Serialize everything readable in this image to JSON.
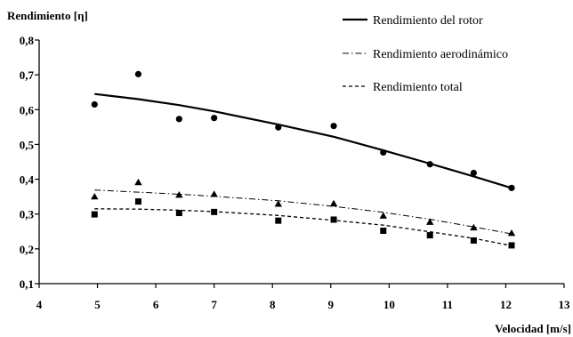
{
  "chart_data": {
    "type": "scatter",
    "ylabel": "Rendimiento [η]",
    "xlabel": "Velocidad  [m/s]",
    "xlim": [
      4,
      13
    ],
    "ylim": [
      0.1,
      0.8
    ],
    "x_ticks": [
      "4",
      "5",
      "6",
      "7",
      "8",
      "9",
      "10",
      "11",
      "12",
      "13"
    ],
    "y_ticks": [
      "0,1",
      "0,2",
      "0,3",
      "0,4",
      "0,5",
      "0,6",
      "0,7",
      "0,8"
    ],
    "grid": false,
    "legend_position": "top-right",
    "series": [
      {
        "name": "Rendimiento del rotor",
        "marker": "circle",
        "line": "solid",
        "x": [
          4.95,
          5.7,
          6.4,
          7.0,
          8.1,
          9.05,
          9.9,
          10.7,
          11.45,
          12.1
        ],
        "y": [
          0.615,
          0.702,
          0.573,
          0.576,
          0.549,
          0.553,
          0.477,
          0.443,
          0.418,
          0.375
        ],
        "trend": [
          [
            4.95,
            0.645
          ],
          [
            5.7,
            0.63
          ],
          [
            6.4,
            0.613
          ],
          [
            7.0,
            0.595
          ],
          [
            8.1,
            0.557
          ],
          [
            9.05,
            0.522
          ],
          [
            9.9,
            0.483
          ],
          [
            10.7,
            0.445
          ],
          [
            11.45,
            0.408
          ],
          [
            12.1,
            0.375
          ]
        ]
      },
      {
        "name": "Rendimiento aerodinámico",
        "marker": "triangle",
        "line": "dash-dot",
        "x": [
          4.95,
          5.7,
          6.4,
          7.0,
          8.1,
          9.05,
          9.9,
          10.7,
          11.45,
          12.1
        ],
        "y": [
          0.35,
          0.391,
          0.355,
          0.357,
          0.329,
          0.33,
          0.295,
          0.277,
          0.261,
          0.245
        ],
        "trend": [
          [
            4.95,
            0.369
          ],
          [
            5.7,
            0.363
          ],
          [
            6.4,
            0.357
          ],
          [
            7.0,
            0.351
          ],
          [
            8.1,
            0.338
          ],
          [
            9.05,
            0.322
          ],
          [
            9.9,
            0.305
          ],
          [
            10.7,
            0.285
          ],
          [
            11.45,
            0.263
          ],
          [
            12.1,
            0.243
          ]
        ]
      },
      {
        "name": "Rendimiento total",
        "marker": "square",
        "line": "dashed",
        "x": [
          4.95,
          5.7,
          6.4,
          7.0,
          8.1,
          9.05,
          9.9,
          10.7,
          11.45,
          12.1
        ],
        "y": [
          0.299,
          0.336,
          0.303,
          0.306,
          0.281,
          0.284,
          0.252,
          0.239,
          0.224,
          0.21
        ],
        "trend": [
          [
            4.95,
            0.315
          ],
          [
            5.7,
            0.314
          ],
          [
            6.4,
            0.311
          ],
          [
            7.0,
            0.307
          ],
          [
            8.1,
            0.296
          ],
          [
            9.05,
            0.282
          ],
          [
            9.9,
            0.268
          ],
          [
            10.7,
            0.249
          ],
          [
            11.45,
            0.23
          ],
          [
            12.1,
            0.209
          ]
        ]
      }
    ],
    "colors": {
      "marks": "#000000",
      "background": "#ffffff"
    }
  }
}
